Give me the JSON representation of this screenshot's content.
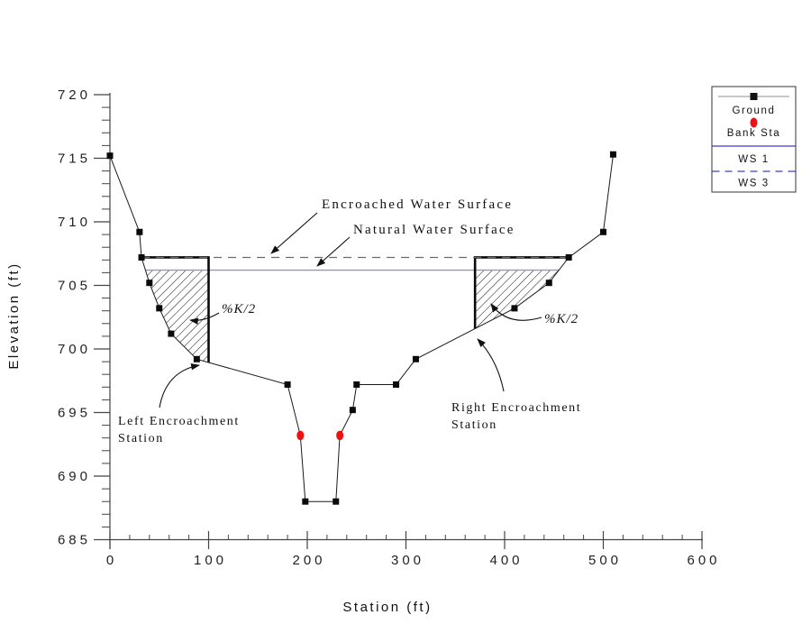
{
  "colors": {
    "red": "#ee1111",
    "legend_blue": "#3d3dcc",
    "ground_gray": "#909090",
    "ws1_plot": "#9494c6",
    "ws3_plot": "#6a6a6a",
    "axis": "#444444"
  },
  "axis_titles": {
    "x": "Station (ft)",
    "y": "Elevation (ft)"
  },
  "legend": {
    "items": [
      {
        "label": "Ground",
        "swatch": "gray-line-black-square-marker"
      },
      {
        "label": "Bank Sta",
        "swatch": "red-ellipse"
      },
      {
        "label": "WS 1",
        "swatch": "blue-solid-line"
      },
      {
        "label": "WS 3",
        "swatch": "blue-dashed-line"
      }
    ]
  },
  "annotations": {
    "encroached_ws": "Encroached Water Surface",
    "natural_ws": "Natural Water Surface",
    "pct_k2_left": "%K/2",
    "pct_k2_right": "%K/2",
    "left_encroachment_line1": "Left Encroachment",
    "left_encroachment_line2": "Station",
    "right_encroachment_line1": "Right Encroachment",
    "right_encroachment_line2": "Station"
  },
  "chart_data": {
    "type": "line",
    "title": "",
    "xlabel": "Station (ft)",
    "ylabel": "Elevation (ft)",
    "xlim": [
      0,
      600
    ],
    "ylim": [
      685,
      720
    ],
    "x_ticks": [
      0,
      100,
      200,
      300,
      400,
      500,
      600
    ],
    "y_ticks": [
      685,
      690,
      695,
      700,
      705,
      710,
      715,
      720
    ],
    "x_minor_step": 20,
    "y_minor_step": 1,
    "grid": false,
    "legend_position": "outside-top-right",
    "series": [
      {
        "name": "Ground",
        "marker": "black-square",
        "color": "#1a1a1a",
        "points": [
          [
            0,
            715.2
          ],
          [
            30,
            709.2
          ],
          [
            32,
            707.2
          ],
          [
            40,
            705.2
          ],
          [
            50,
            703.2
          ],
          [
            62,
            701.2
          ],
          [
            88,
            699.2
          ],
          [
            180,
            697.2
          ],
          [
            193,
            693.2
          ],
          [
            198,
            688.0
          ],
          [
            229,
            688.0
          ],
          [
            233,
            693.2
          ],
          [
            246,
            695.2
          ],
          [
            250,
            697.2
          ],
          [
            290,
            697.2
          ],
          [
            310,
            699.2
          ],
          [
            410,
            703.2
          ],
          [
            445,
            705.2
          ],
          [
            465,
            707.2
          ],
          [
            500,
            709.2
          ],
          [
            510,
            715.3
          ]
        ]
      },
      {
        "name": "Bank Sta",
        "marker": "red-ellipse",
        "color": "#ee1111",
        "points": [
          [
            193,
            693.2
          ],
          [
            233,
            693.2
          ]
        ]
      },
      {
        "name": "WS 1",
        "style": "solid",
        "color": "#9494c6",
        "elevation": 706.2,
        "from_station": 36,
        "to_station": 455
      },
      {
        "name": "WS 3",
        "style": "dashed",
        "color": "#6a6a6a",
        "elevation": 707.2,
        "from_station": 32,
        "to_station": 465
      }
    ],
    "encroachments": {
      "left": {
        "station": 100,
        "top_elevation": 707.2,
        "outline_from_station": 32
      },
      "right": {
        "station": 370,
        "top_elevation": 707.2,
        "outline_to_station": 465
      }
    }
  }
}
